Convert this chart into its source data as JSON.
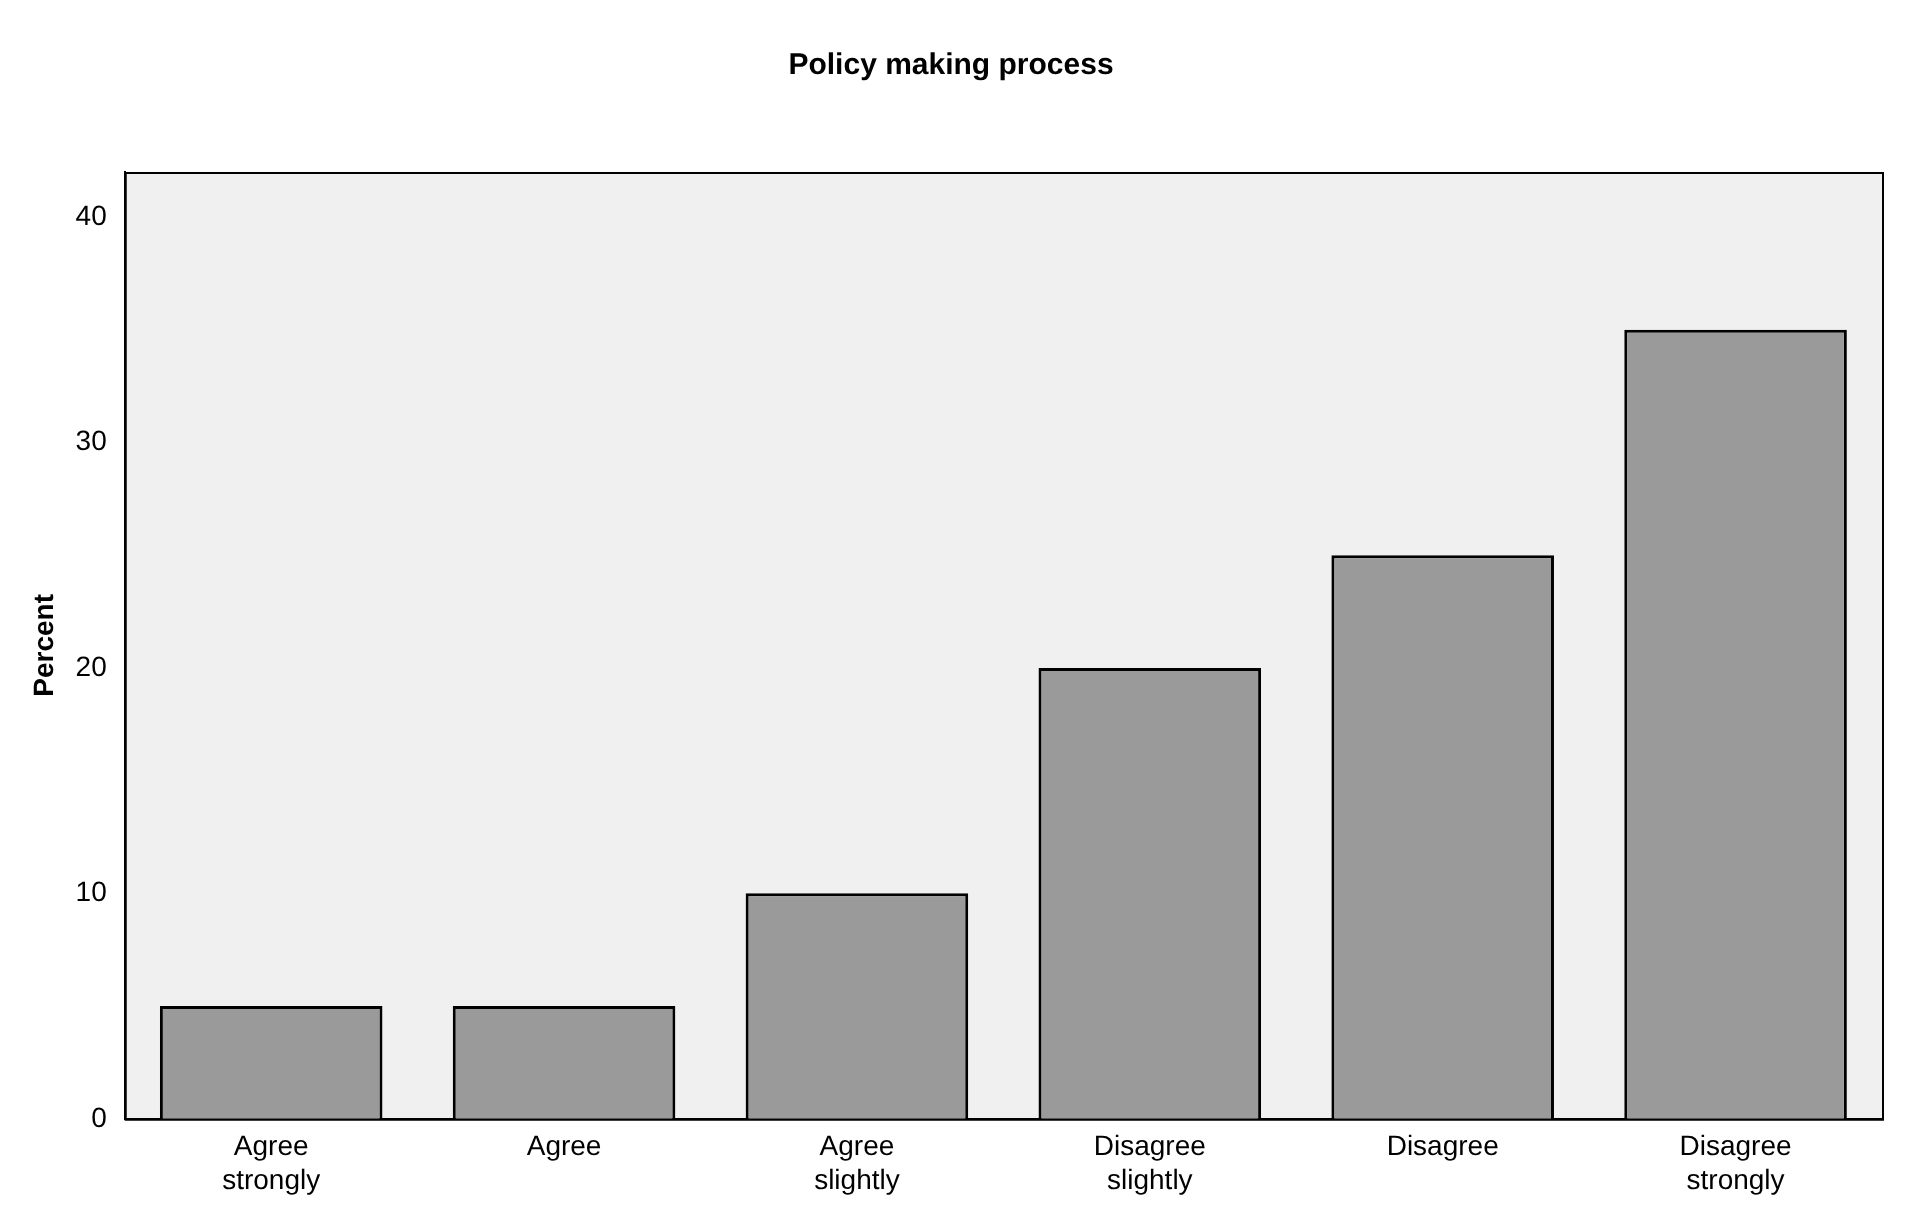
{
  "chart_data": {
    "type": "bar",
    "title": "Policy making process",
    "ylabel": "Percent",
    "categories": [
      "Agree strongly",
      "Agree",
      "Agree slightly",
      "Disagree slightly",
      "Disagree",
      "Disagree strongly"
    ],
    "values": [
      5,
      5,
      10,
      20,
      25,
      35
    ],
    "color": "#9a9a9a",
    "ylim": [
      0,
      42
    ],
    "yticks": [
      0,
      10,
      20,
      30,
      40
    ],
    "grid": false,
    "legend": false
  }
}
